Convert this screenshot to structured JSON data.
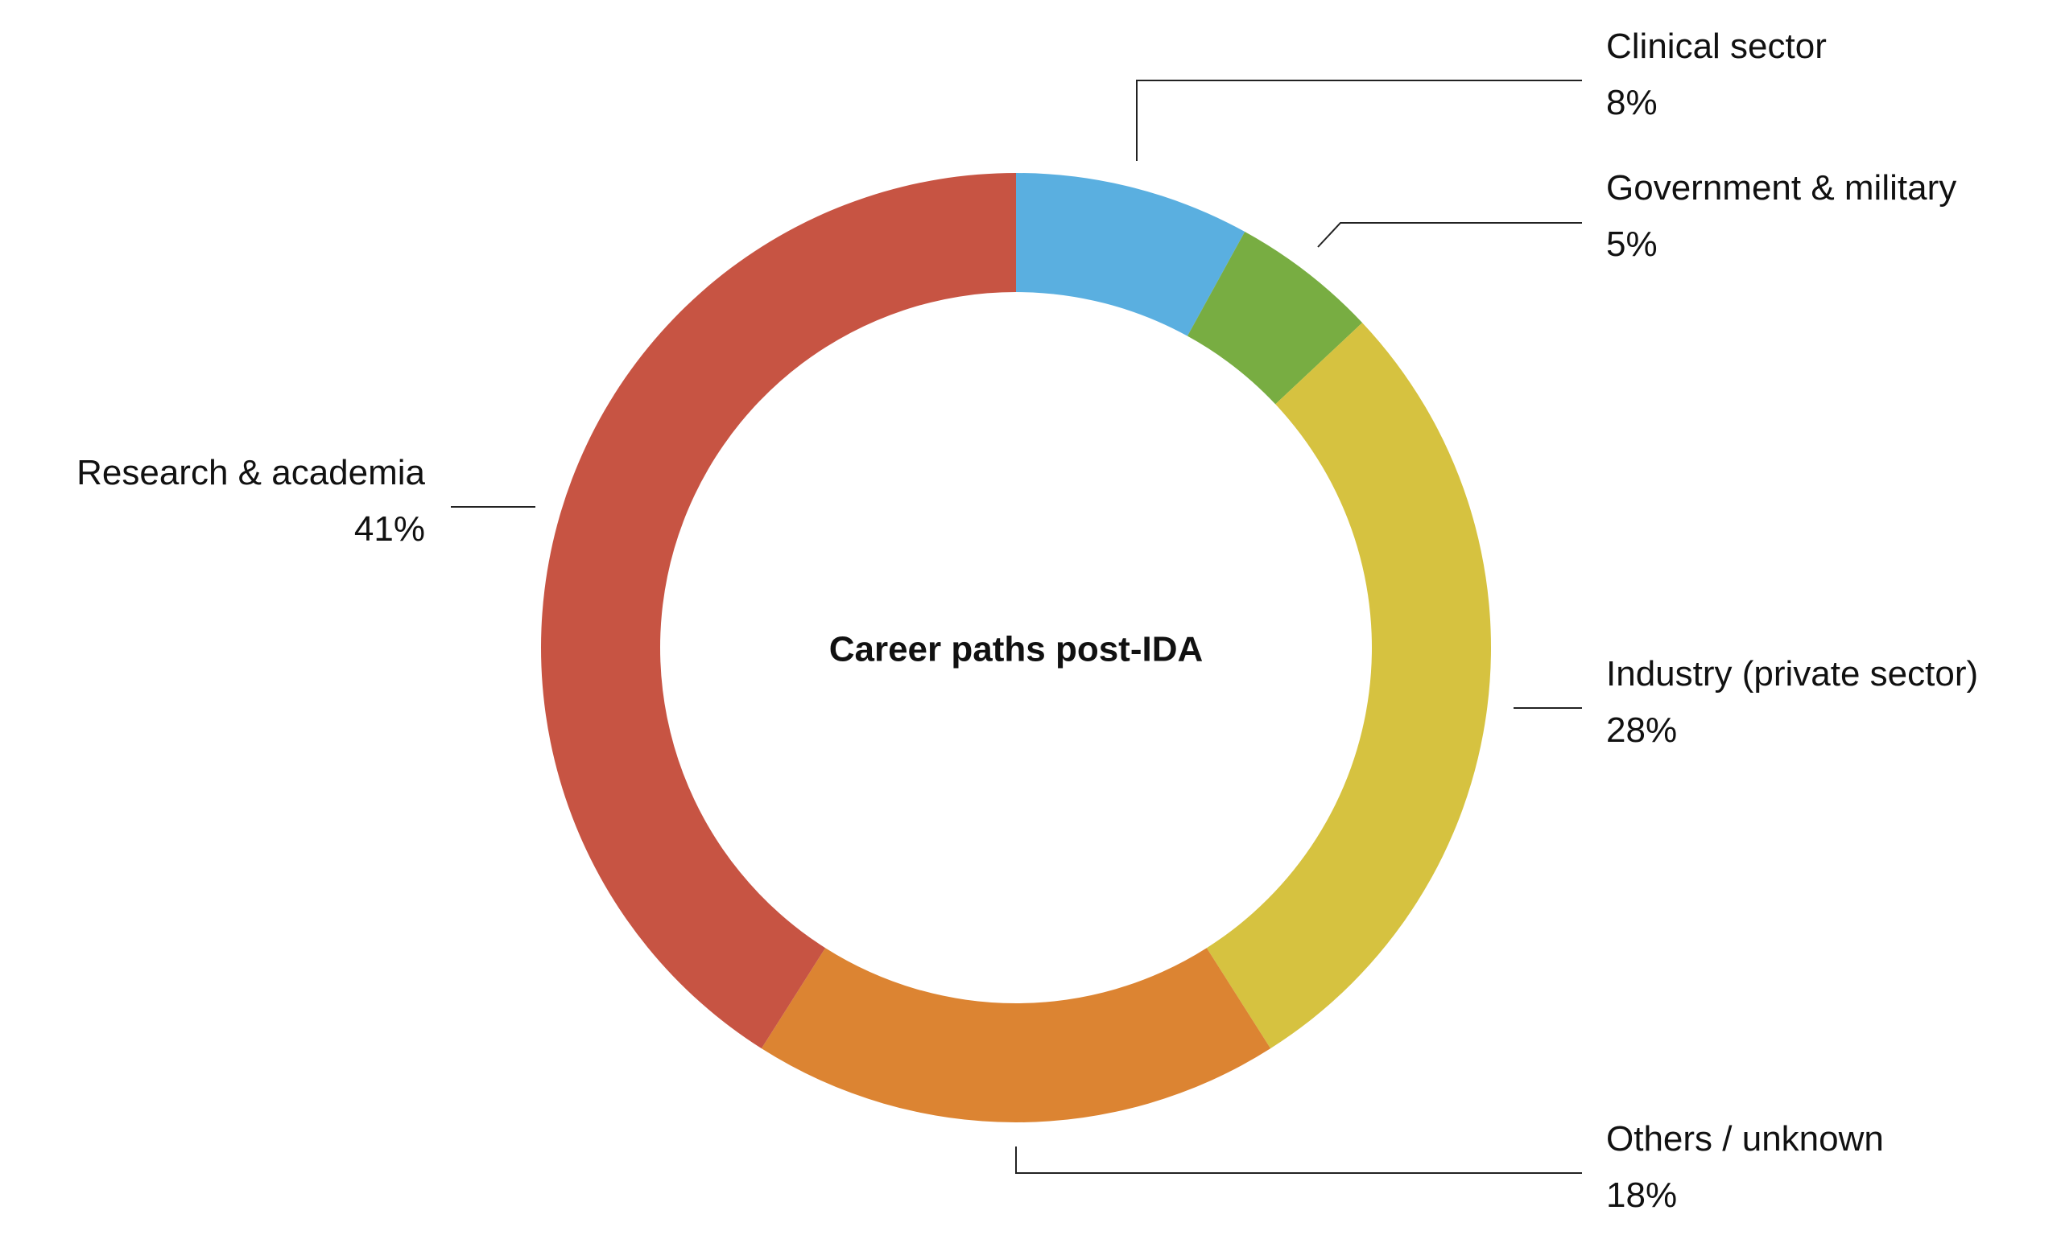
{
  "chart_data": {
    "type": "pie",
    "variant": "donut",
    "title": "Career paths post-IDA",
    "categories": [
      "Clinical sector",
      "Government & military",
      "Industry (private sector)",
      "Others / unknown",
      "Research & academia"
    ],
    "values": [
      8,
      5,
      28,
      18,
      41
    ],
    "value_labels": [
      "8%",
      "5%",
      "28%",
      "18%",
      "41%"
    ],
    "colors": [
      "#5aafe0",
      "#78ad42",
      "#d6c240",
      "#dc8432",
      "#c75443"
    ],
    "legend": "none",
    "grid": false
  }
}
